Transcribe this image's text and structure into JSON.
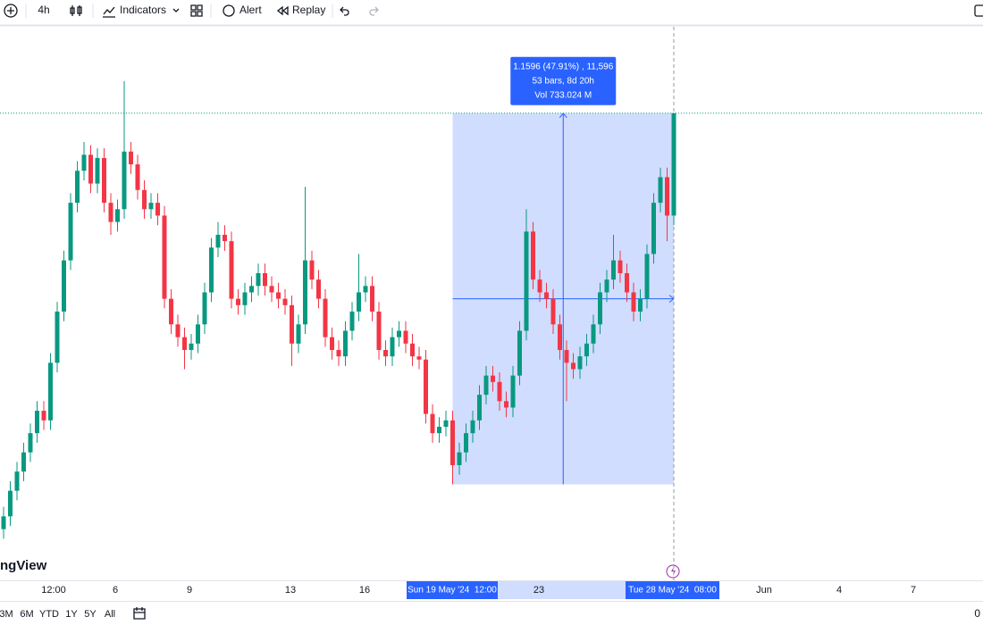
{
  "toolbar": {
    "interval": "4h",
    "items": [
      "Indicators",
      "Alert",
      "Replay"
    ]
  },
  "chart_data": {
    "type": "candlestick",
    "watermark": "ngView",
    "up_color": "#089981",
    "down_color": "#f23645",
    "ylim": [
      2.12,
      3.85
    ],
    "x_labels": [
      "12:00",
      "6",
      "9",
      "13",
      "16",
      "23",
      "Jun",
      "4",
      "7"
    ],
    "ohlc": [
      [
        2.28,
        2.35,
        2.25,
        2.32
      ],
      [
        2.32,
        2.43,
        2.29,
        2.4
      ],
      [
        2.4,
        2.49,
        2.37,
        2.46
      ],
      [
        2.46,
        2.55,
        2.43,
        2.52
      ],
      [
        2.52,
        2.61,
        2.49,
        2.58
      ],
      [
        2.58,
        2.68,
        2.55,
        2.65
      ],
      [
        2.65,
        2.68,
        2.59,
        2.62
      ],
      [
        2.62,
        2.83,
        2.59,
        2.8
      ],
      [
        2.8,
        2.99,
        2.77,
        2.96
      ],
      [
        2.96,
        3.15,
        2.93,
        3.12
      ],
      [
        3.12,
        3.33,
        3.09,
        3.3
      ],
      [
        3.3,
        3.43,
        3.27,
        3.4
      ],
      [
        3.4,
        3.49,
        3.37,
        3.45
      ],
      [
        3.45,
        3.48,
        3.33,
        3.36
      ],
      [
        3.36,
        3.47,
        3.33,
        3.44
      ],
      [
        3.44,
        3.47,
        3.27,
        3.3
      ],
      [
        3.3,
        3.33,
        3.2,
        3.24
      ],
      [
        3.24,
        3.31,
        3.21,
        3.28
      ],
      [
        3.28,
        3.68,
        3.25,
        3.46
      ],
      [
        3.46,
        3.49,
        3.39,
        3.42
      ],
      [
        3.42,
        3.45,
        3.31,
        3.34
      ],
      [
        3.34,
        3.37,
        3.25,
        3.28
      ],
      [
        3.28,
        3.33,
        3.25,
        3.3
      ],
      [
        3.3,
        3.33,
        3.23,
        3.26
      ],
      [
        3.26,
        3.29,
        2.97,
        3.0
      ],
      [
        3.0,
        3.03,
        2.89,
        2.92
      ],
      [
        2.92,
        2.95,
        2.85,
        2.88
      ],
      [
        2.88,
        2.91,
        2.78,
        2.84
      ],
      [
        2.84,
        2.89,
        2.81,
        2.86
      ],
      [
        2.86,
        2.95,
        2.83,
        2.92
      ],
      [
        2.92,
        3.05,
        2.89,
        3.02
      ],
      [
        3.02,
        3.19,
        2.99,
        3.16
      ],
      [
        3.16,
        3.24,
        3.13,
        3.2
      ],
      [
        3.2,
        3.23,
        3.15,
        3.18
      ],
      [
        3.18,
        3.21,
        2.97,
        3.0
      ],
      [
        3.0,
        3.03,
        2.95,
        2.98
      ],
      [
        2.98,
        3.05,
        2.95,
        3.02
      ],
      [
        3.02,
        3.07,
        2.99,
        3.04
      ],
      [
        3.04,
        3.11,
        3.01,
        3.08
      ],
      [
        3.08,
        3.11,
        3.01,
        3.04
      ],
      [
        3.04,
        3.07,
        2.99,
        3.02
      ],
      [
        3.02,
        3.05,
        2.97,
        3.0
      ],
      [
        3.0,
        3.03,
        2.95,
        2.98
      ],
      [
        2.98,
        3.01,
        2.79,
        2.86
      ],
      [
        2.86,
        2.95,
        2.83,
        2.92
      ],
      [
        2.92,
        3.35,
        2.89,
        3.12
      ],
      [
        3.12,
        3.15,
        3.03,
        3.06
      ],
      [
        3.06,
        3.09,
        2.97,
        3.0
      ],
      [
        3.0,
        3.03,
        2.85,
        2.88
      ],
      [
        2.88,
        2.91,
        2.81,
        2.84
      ],
      [
        2.84,
        2.87,
        2.79,
        2.82
      ],
      [
        2.82,
        2.93,
        2.79,
        2.9
      ],
      [
        2.9,
        2.99,
        2.87,
        2.96
      ],
      [
        2.96,
        3.14,
        2.93,
        3.02
      ],
      [
        3.02,
        3.07,
        2.99,
        3.04
      ],
      [
        3.04,
        3.07,
        2.93,
        2.96
      ],
      [
        2.96,
        2.99,
        2.81,
        2.84
      ],
      [
        2.84,
        2.87,
        2.79,
        2.82
      ],
      [
        2.82,
        2.91,
        2.79,
        2.88
      ],
      [
        2.88,
        2.93,
        2.85,
        2.9
      ],
      [
        2.9,
        2.93,
        2.83,
        2.86
      ],
      [
        2.86,
        2.89,
        2.79,
        2.82
      ],
      [
        2.82,
        2.85,
        2.78,
        2.81
      ],
      [
        2.81,
        2.84,
        2.61,
        2.64
      ],
      [
        2.64,
        2.67,
        2.55,
        2.58
      ],
      [
        2.58,
        2.63,
        2.55,
        2.6
      ],
      [
        2.6,
        2.65,
        2.57,
        2.62
      ],
      [
        2.62,
        2.65,
        2.42,
        2.48
      ],
      [
        2.48,
        2.55,
        2.45,
        2.52
      ],
      [
        2.52,
        2.61,
        2.49,
        2.58
      ],
      [
        2.58,
        2.65,
        2.55,
        2.62
      ],
      [
        2.62,
        2.73,
        2.59,
        2.7
      ],
      [
        2.7,
        2.79,
        2.67,
        2.76
      ],
      [
        2.76,
        2.79,
        2.71,
        2.74
      ],
      [
        2.74,
        2.77,
        2.65,
        2.68
      ],
      [
        2.68,
        2.71,
        2.63,
        2.66
      ],
      [
        2.66,
        2.79,
        2.63,
        2.76
      ],
      [
        2.76,
        2.93,
        2.73,
        2.9
      ],
      [
        2.9,
        3.28,
        2.87,
        3.21
      ],
      [
        3.21,
        3.24,
        3.03,
        3.06
      ],
      [
        3.06,
        3.09,
        2.99,
        3.02
      ],
      [
        3.02,
        3.05,
        2.97,
        3.0
      ],
      [
        3.0,
        3.03,
        2.89,
        2.92
      ],
      [
        2.92,
        2.95,
        2.81,
        2.84
      ],
      [
        2.84,
        2.87,
        2.68,
        2.8
      ],
      [
        2.8,
        2.83,
        2.75,
        2.78
      ],
      [
        2.78,
        2.85,
        2.75,
        2.82
      ],
      [
        2.82,
        2.89,
        2.79,
        2.86
      ],
      [
        2.86,
        2.95,
        2.83,
        2.92
      ],
      [
        2.92,
        3.05,
        2.89,
        3.02
      ],
      [
        3.02,
        3.09,
        2.99,
        3.06
      ],
      [
        3.06,
        3.2,
        3.03,
        3.12
      ],
      [
        3.12,
        3.15,
        3.05,
        3.08
      ],
      [
        3.08,
        3.11,
        2.99,
        3.02
      ],
      [
        3.02,
        3.05,
        2.93,
        2.96
      ],
      [
        2.96,
        3.03,
        2.93,
        3.0
      ],
      [
        3.0,
        3.17,
        2.97,
        3.14
      ],
      [
        3.14,
        3.33,
        3.11,
        3.3
      ],
      [
        3.3,
        3.41,
        3.27,
        3.38
      ],
      [
        3.38,
        3.41,
        3.18,
        3.26
      ],
      [
        3.26,
        3.58,
        3.23,
        3.58
      ]
    ]
  },
  "measurement": {
    "lines": [
      "1.1596 (47.91%) , 11,596",
      "53 bars, 8d 20h",
      "Vol 733.024 M"
    ]
  },
  "range_labels": [
    "Sun 19 May '24  12:00",
    "Tue 28 May '24  08:00"
  ],
  "timeframes": [
    "3M",
    "6M",
    "YTD",
    "1Y",
    "5Y",
    "All"
  ],
  "right_axis_label": "0"
}
